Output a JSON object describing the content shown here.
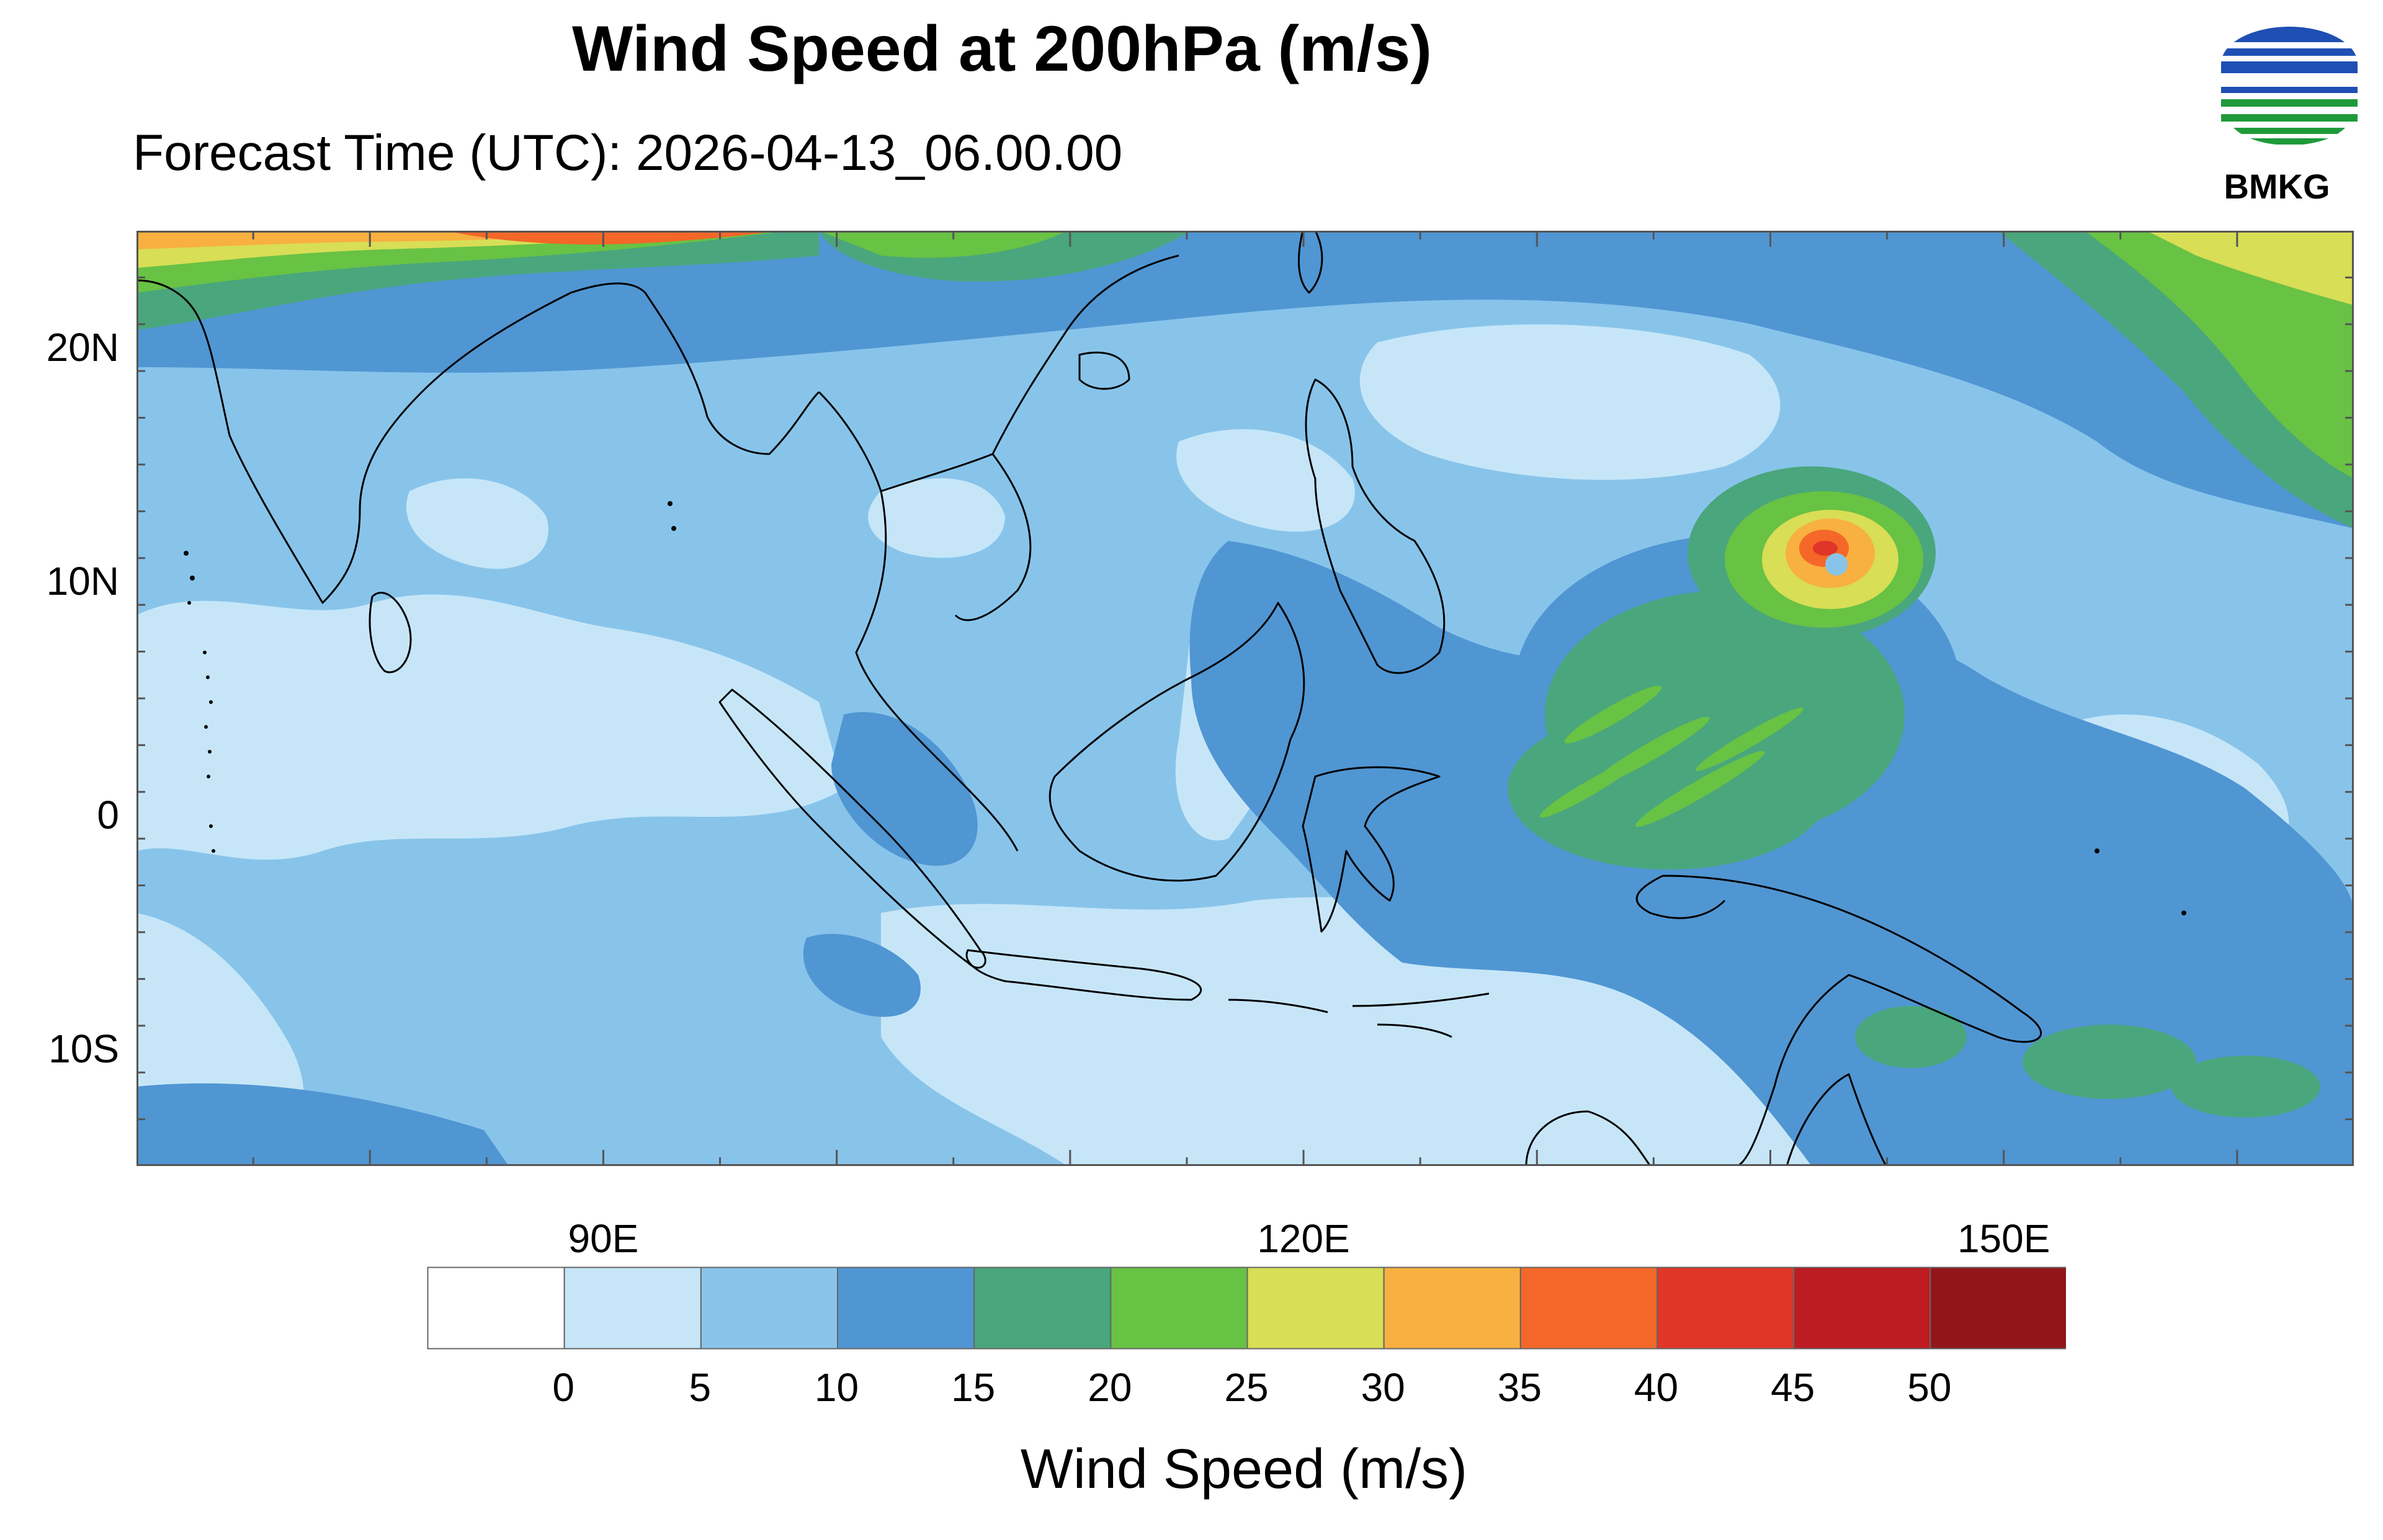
{
  "title": "Wind Speed at 200hPa (m/s)",
  "subtitle": "Forecast Time (UTC): 2026-04-13_06.00.00",
  "logo": {
    "text": "BMKG",
    "icon": "bmkg-logo-icon",
    "colors": [
      "#1f4fb3",
      "#1f9a3a"
    ]
  },
  "map": {
    "lon_range": [
      70,
      165
    ],
    "lat_range": [
      -15,
      25
    ],
    "lat_labels": [
      "20N",
      "10N",
      "0",
      "10S"
    ],
    "lat_values": [
      20,
      10,
      0,
      -10
    ],
    "lon_labels": [
      "90E",
      "120E",
      "150E"
    ],
    "lon_values": [
      90,
      120,
      150
    ]
  },
  "colorbar": {
    "title": "Wind Speed (m/s)",
    "ticks": [
      "0",
      "5",
      "10",
      "15",
      "20",
      "25",
      "30",
      "35",
      "40",
      "45",
      "50"
    ],
    "colors": [
      "#ffffff",
      "#c6e6f8",
      "#88c4ea",
      "#5096d3",
      "#4aa67d",
      "#68c244",
      "#d8de55",
      "#f8b040",
      "#f46728",
      "#df3627",
      "#bd1c22",
      "#911619"
    ]
  }
}
